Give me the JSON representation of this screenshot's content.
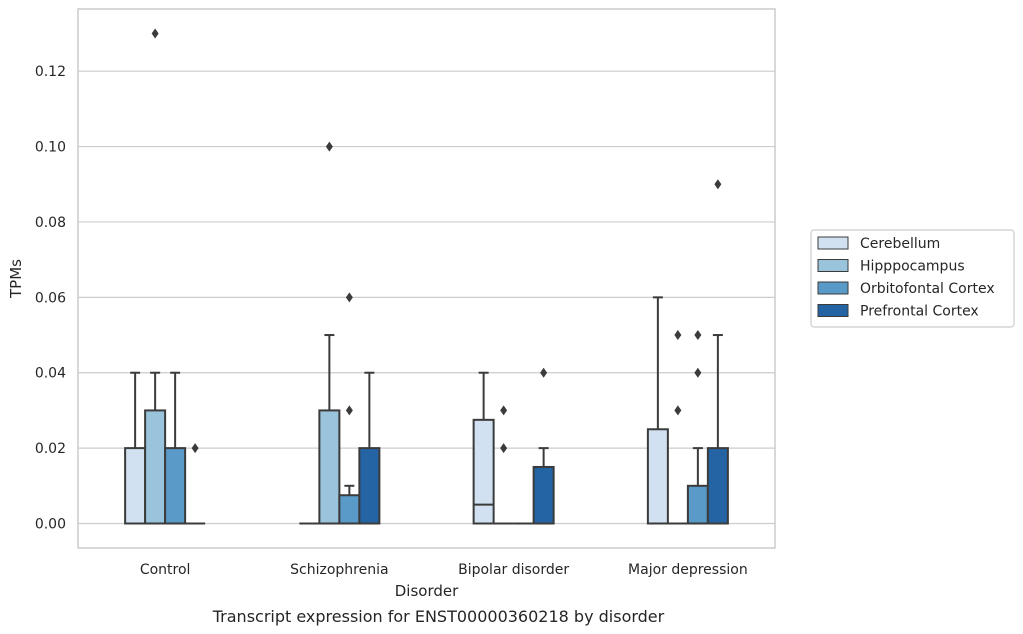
{
  "caption": "Transcript expression for ENST00000360218 by disorder",
  "chart_data": {
    "type": "box",
    "xlabel": "Disorder",
    "ylabel": "TPMs",
    "ylim": [
      -0.0065,
      0.1365
    ],
    "yticks": [
      "0.00",
      "0.02",
      "0.04",
      "0.06",
      "0.08",
      "0.10",
      "0.12"
    ],
    "grid": "horizontal",
    "legend_position": "right",
    "categories": [
      "Control",
      "Schizophrenia",
      "Bipolar disorder",
      "Major depression"
    ],
    "series": [
      {
        "name": "Cerebellum",
        "color": "#d1e1f1",
        "boxes": [
          {
            "q1": 0.0,
            "median": 0.0,
            "q3": 0.02,
            "whisker_low": 0.0,
            "whisker_high": 0.04,
            "outliers": []
          },
          {
            "q1": 0.0,
            "median": 0.0,
            "q3": 0.0,
            "whisker_low": 0.0,
            "whisker_high": 0.0,
            "outliers": []
          },
          {
            "q1": 0.0,
            "median": 0.005,
            "q3": 0.0275,
            "whisker_low": 0.0,
            "whisker_high": 0.04,
            "outliers": []
          },
          {
            "q1": 0.0,
            "median": 0.0,
            "q3": 0.025,
            "whisker_low": 0.0,
            "whisker_high": 0.06,
            "outliers": []
          }
        ]
      },
      {
        "name": "Hipppocampus",
        "color": "#9ac3dc",
        "boxes": [
          {
            "q1": 0.0,
            "median": 0.0,
            "q3": 0.03,
            "whisker_low": 0.0,
            "whisker_high": 0.04,
            "outliers": [
              0.13
            ]
          },
          {
            "q1": 0.0,
            "median": 0.0,
            "q3": 0.03,
            "whisker_low": 0.0,
            "whisker_high": 0.05,
            "outliers": [
              0.1
            ]
          },
          {
            "q1": 0.0,
            "median": 0.0,
            "q3": 0.0,
            "whisker_low": 0.0,
            "whisker_high": 0.0,
            "outliers": [
              0.02,
              0.03
            ]
          },
          {
            "q1": 0.0,
            "median": 0.0,
            "q3": 0.0,
            "whisker_low": 0.0,
            "whisker_high": 0.0,
            "outliers": [
              0.03,
              0.05
            ]
          }
        ]
      },
      {
        "name": "Orbitofontal Cortex",
        "color": "#5a9ac8",
        "boxes": [
          {
            "q1": 0.0,
            "median": 0.0,
            "q3": 0.02,
            "whisker_low": 0.0,
            "whisker_high": 0.04,
            "outliers": []
          },
          {
            "q1": 0.0,
            "median": 0.0,
            "q3": 0.0075,
            "whisker_low": 0.0,
            "whisker_high": 0.01,
            "outliers": [
              0.03,
              0.06
            ]
          },
          {
            "q1": 0.0,
            "median": 0.0,
            "q3": 0.0,
            "whisker_low": 0.0,
            "whisker_high": 0.0,
            "outliers": []
          },
          {
            "q1": 0.0,
            "median": 0.0,
            "q3": 0.01,
            "whisker_low": 0.0,
            "whisker_high": 0.02,
            "outliers": [
              0.04,
              0.05
            ]
          }
        ]
      },
      {
        "name": "Prefrontal Cortex",
        "color": "#2464a5",
        "boxes": [
          {
            "q1": 0.0,
            "median": 0.0,
            "q3": 0.0,
            "whisker_low": 0.0,
            "whisker_high": 0.0,
            "outliers": [
              0.02
            ]
          },
          {
            "q1": 0.0,
            "median": 0.0,
            "q3": 0.02,
            "whisker_low": 0.0,
            "whisker_high": 0.04,
            "outliers": []
          },
          {
            "q1": 0.0,
            "median": 0.0,
            "q3": 0.015,
            "whisker_low": 0.0,
            "whisker_high": 0.02,
            "outliers": [
              0.04
            ]
          },
          {
            "q1": 0.0,
            "median": 0.0,
            "q3": 0.02,
            "whisker_low": 0.0,
            "whisker_high": 0.05,
            "outliers": [
              0.09
            ]
          }
        ]
      }
    ]
  }
}
